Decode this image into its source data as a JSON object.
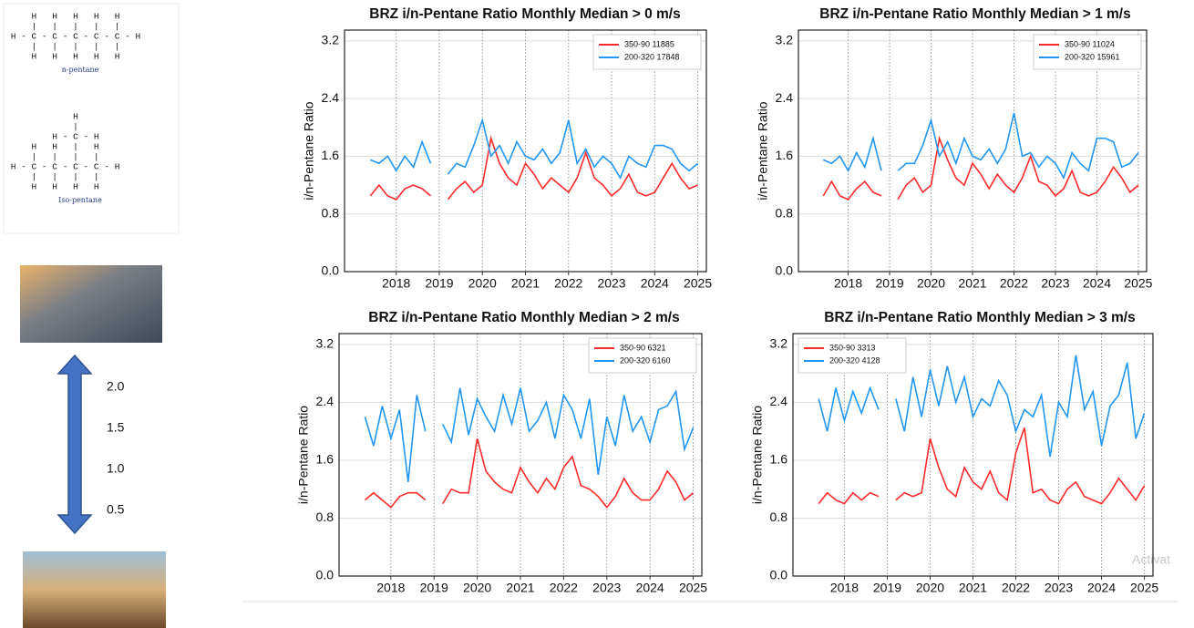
{
  "sidebar": {
    "molecules": [
      {
        "rows": [
          "     H   H   H   H   H",
          "     |   |   |   |   |",
          " H - C - C - C - C - C - H",
          "     |   |   |   |   |",
          "     H   H   H   H   H"
        ],
        "label": "n-pentane"
      },
      {
        "rows": [
          "             H",
          "             |",
          "         H - C - H",
          "     H   H   |   H",
          "     |   |   |   |",
          " H - C - C - C - C - H",
          "     |   |   |   |",
          "     H   H   H   H"
        ],
        "label": "Iso-pentane"
      }
    ],
    "scale_labels": [
      "2.0",
      "1.5",
      "1.0",
      "0.5"
    ],
    "watermark": "Activat"
  },
  "chart_data": [
    {
      "type": "line",
      "title": "BRZ i/n-Pentane Ratio Monthly Median > 0 m/s",
      "ylabel": "i/n-Pentane Ratio",
      "x": [
        2017.4,
        2017.6,
        2017.8,
        2018,
        2018.2,
        2018.4,
        2018.6,
        2018.8,
        2019,
        2019.2,
        2019.4,
        2019.6,
        2019.8,
        2020,
        2020.2,
        2020.4,
        2020.6,
        2020.8,
        2021,
        2021.2,
        2021.4,
        2021.6,
        2021.8,
        2022,
        2022.2,
        2022.4,
        2022.6,
        2022.8,
        2023,
        2023.2,
        2023.4,
        2023.6,
        2023.8,
        2024,
        2024.2,
        2024.4,
        2024.6,
        2024.8,
        2025
      ],
      "series": [
        {
          "name": "350-90 11885",
          "color": "#ff2a2a",
          "values": [
            1.05,
            1.2,
            1.05,
            1.0,
            1.15,
            1.2,
            1.15,
            1.05,
            null,
            1.0,
            1.15,
            1.25,
            1.1,
            1.2,
            1.85,
            1.5,
            1.3,
            1.2,
            1.5,
            1.35,
            1.15,
            1.3,
            1.2,
            1.1,
            1.3,
            1.65,
            1.3,
            1.2,
            1.05,
            1.15,
            1.35,
            1.1,
            1.05,
            1.1,
            1.3,
            1.5,
            1.3,
            1.15,
            1.2
          ]
        },
        {
          "name": "200-320 17848",
          "color": "#2196f3",
          "values": [
            1.55,
            1.5,
            1.6,
            1.4,
            1.6,
            1.45,
            1.8,
            1.5,
            null,
            1.35,
            1.5,
            1.45,
            1.75,
            2.1,
            1.6,
            1.75,
            1.5,
            1.8,
            1.6,
            1.55,
            1.7,
            1.5,
            1.65,
            2.1,
            1.5,
            1.7,
            1.45,
            1.6,
            1.5,
            1.3,
            1.6,
            1.5,
            1.45,
            1.75,
            1.75,
            1.7,
            1.5,
            1.4,
            1.5
          ]
        }
      ],
      "xlim": [
        2016.8,
        2025.2
      ],
      "xticks": [
        2018,
        2019,
        2020,
        2021,
        2022,
        2023,
        2024,
        2025
      ],
      "ylim": [
        0,
        3.35
      ],
      "yticks": [
        {
          "value": 0,
          "label": "0.0"
        },
        {
          "value": 0.8,
          "label": "0.8"
        },
        {
          "value": 1.6,
          "label": "1.6"
        },
        {
          "value": 2.4,
          "label": "2.4"
        },
        {
          "value": 3.2,
          "label": "3.2"
        }
      ],
      "grid": true,
      "legend": "upper right"
    },
    {
      "type": "line",
      "title": "BRZ i/n-Pentane Ratio Monthly Median > 1 m/s",
      "ylabel": "i/n-Pentane Ratio",
      "x": [
        2017.4,
        2017.6,
        2017.8,
        2018,
        2018.2,
        2018.4,
        2018.6,
        2018.8,
        2019,
        2019.2,
        2019.4,
        2019.6,
        2019.8,
        2020,
        2020.2,
        2020.4,
        2020.6,
        2020.8,
        2021,
        2021.2,
        2021.4,
        2021.6,
        2021.8,
        2022,
        2022.2,
        2022.4,
        2022.6,
        2022.8,
        2023,
        2023.2,
        2023.4,
        2023.6,
        2023.8,
        2024,
        2024.2,
        2024.4,
        2024.6,
        2024.8,
        2025
      ],
      "series": [
        {
          "name": "350-90 11024",
          "color": "#ff2a2a",
          "values": [
            1.05,
            1.25,
            1.05,
            1.0,
            1.15,
            1.25,
            1.1,
            1.05,
            null,
            1.0,
            1.2,
            1.3,
            1.1,
            1.2,
            1.85,
            1.55,
            1.3,
            1.2,
            1.5,
            1.35,
            1.15,
            1.35,
            1.2,
            1.1,
            1.3,
            1.6,
            1.25,
            1.2,
            1.05,
            1.15,
            1.4,
            1.1,
            1.05,
            1.1,
            1.25,
            1.45,
            1.3,
            1.1,
            1.2
          ]
        },
        {
          "name": "200-320 15961",
          "color": "#2196f3",
          "values": [
            1.55,
            1.5,
            1.6,
            1.4,
            1.65,
            1.45,
            1.85,
            1.4,
            null,
            1.4,
            1.5,
            1.5,
            1.75,
            2.1,
            1.6,
            1.8,
            1.5,
            1.85,
            1.6,
            1.55,
            1.7,
            1.5,
            1.7,
            2.2,
            1.6,
            1.65,
            1.45,
            1.6,
            1.5,
            1.3,
            1.65,
            1.5,
            1.4,
            1.85,
            1.85,
            1.8,
            1.45,
            1.5,
            1.65
          ]
        }
      ],
      "xlim": [
        2016.8,
        2025.2
      ],
      "xticks": [
        2018,
        2019,
        2020,
        2021,
        2022,
        2023,
        2024,
        2025
      ],
      "ylim": [
        0,
        3.35
      ],
      "yticks": [
        {
          "value": 0,
          "label": "0.0"
        },
        {
          "value": 0.8,
          "label": "0.8"
        },
        {
          "value": 1.6,
          "label": "1.6"
        },
        {
          "value": 2.4,
          "label": "2.4"
        },
        {
          "value": 3.2,
          "label": "3.2"
        }
      ],
      "grid": true,
      "legend": "upper right"
    },
    {
      "type": "line",
      "title": "BRZ i/n-Pentane Ratio Monthly Median > 2 m/s",
      "ylabel": "i/n-Pentane Ratio",
      "x": [
        2017.4,
        2017.6,
        2017.8,
        2018,
        2018.2,
        2018.4,
        2018.6,
        2018.8,
        2019,
        2019.2,
        2019.4,
        2019.6,
        2019.8,
        2020,
        2020.2,
        2020.4,
        2020.6,
        2020.8,
        2021,
        2021.2,
        2021.4,
        2021.6,
        2021.8,
        2022,
        2022.2,
        2022.4,
        2022.6,
        2022.8,
        2023,
        2023.2,
        2023.4,
        2023.6,
        2023.8,
        2024,
        2024.2,
        2024.4,
        2024.6,
        2024.8,
        2025
      ],
      "series": [
        {
          "name": "350-90 6321",
          "color": "#ff2a2a",
          "values": [
            1.05,
            1.15,
            1.05,
            0.95,
            1.1,
            1.15,
            1.15,
            1.05,
            null,
            1.0,
            1.2,
            1.15,
            1.15,
            1.9,
            1.45,
            1.3,
            1.2,
            1.15,
            1.5,
            1.3,
            1.15,
            1.35,
            1.2,
            1.5,
            1.65,
            1.25,
            1.2,
            1.1,
            0.95,
            1.1,
            1.35,
            1.15,
            1.05,
            1.05,
            1.2,
            1.45,
            1.3,
            1.05,
            1.15
          ]
        },
        {
          "name": "200-320 6160",
          "color": "#2196f3",
          "values": [
            2.2,
            1.8,
            2.35,
            1.9,
            2.3,
            1.3,
            2.5,
            2.0,
            null,
            2.1,
            1.85,
            2.6,
            1.95,
            2.45,
            2.2,
            2.0,
            2.5,
            2.1,
            2.6,
            2.0,
            2.15,
            2.4,
            1.9,
            2.5,
            2.3,
            1.9,
            2.45,
            1.4,
            2.2,
            1.8,
            2.5,
            2.0,
            2.2,
            1.85,
            2.3,
            2.35,
            2.55,
            1.75,
            2.05
          ]
        }
      ],
      "xlim": [
        2016.8,
        2025.2
      ],
      "xticks": [
        2018,
        2019,
        2020,
        2021,
        2022,
        2023,
        2024,
        2025
      ],
      "ylim": [
        0,
        3.35
      ],
      "yticks": [
        {
          "value": 0,
          "label": "0.0"
        },
        {
          "value": 0.8,
          "label": "0.8"
        },
        {
          "value": 1.6,
          "label": "1.6"
        },
        {
          "value": 2.4,
          "label": "2.4"
        },
        {
          "value": 3.2,
          "label": "3.2"
        }
      ],
      "grid": true,
      "legend": "upper right"
    },
    {
      "type": "line",
      "title": "BRZ i/n-Pentane Ratio Monthly Median > 3 m/s",
      "ylabel": "i/n-Pentane Ratio",
      "x": [
        2017.4,
        2017.6,
        2017.8,
        2018,
        2018.2,
        2018.4,
        2018.6,
        2018.8,
        2019,
        2019.2,
        2019.4,
        2019.6,
        2019.8,
        2020,
        2020.2,
        2020.4,
        2020.6,
        2020.8,
        2021,
        2021.2,
        2021.4,
        2021.6,
        2021.8,
        2022,
        2022.2,
        2022.4,
        2022.6,
        2022.8,
        2023,
        2023.2,
        2023.4,
        2023.6,
        2023.8,
        2024,
        2024.2,
        2024.4,
        2024.6,
        2024.8,
        2025
      ],
      "series": [
        {
          "name": "350-90 3313",
          "color": "#ff2a2a",
          "values": [
            1.0,
            1.15,
            1.05,
            1.0,
            1.15,
            1.05,
            1.15,
            1.1,
            null,
            1.05,
            1.15,
            1.1,
            1.15,
            1.9,
            1.5,
            1.2,
            1.1,
            1.5,
            1.3,
            1.2,
            1.45,
            1.15,
            1.05,
            1.7,
            2.05,
            1.15,
            1.2,
            1.05,
            1.0,
            1.2,
            1.3,
            1.1,
            1.05,
            1.0,
            1.15,
            1.35,
            1.2,
            1.05,
            1.25
          ]
        },
        {
          "name": "200-320 4128",
          "color": "#2196f3",
          "values": [
            2.45,
            2.0,
            2.6,
            2.15,
            2.55,
            2.25,
            2.6,
            2.3,
            null,
            2.45,
            2.0,
            2.75,
            2.2,
            2.85,
            2.35,
            2.9,
            2.4,
            2.75,
            2.2,
            2.45,
            2.35,
            2.7,
            2.5,
            2.0,
            2.3,
            2.2,
            2.5,
            1.65,
            2.4,
            2.2,
            3.05,
            2.3,
            2.55,
            1.8,
            2.35,
            2.5,
            2.95,
            1.9,
            2.25
          ]
        }
      ],
      "xlim": [
        2016.8,
        2025.2
      ],
      "xticks": [
        2018,
        2019,
        2020,
        2021,
        2022,
        2023,
        2024,
        2025
      ],
      "ylim": [
        0,
        3.35
      ],
      "yticks": [
        {
          "value": 0,
          "label": "0.0"
        },
        {
          "value": 0.8,
          "label": "0.8"
        },
        {
          "value": 1.6,
          "label": "1.6"
        },
        {
          "value": 2.4,
          "label": "2.4"
        },
        {
          "value": 3.2,
          "label": "3.2"
        }
      ],
      "grid": true,
      "legend": "upper left"
    }
  ]
}
